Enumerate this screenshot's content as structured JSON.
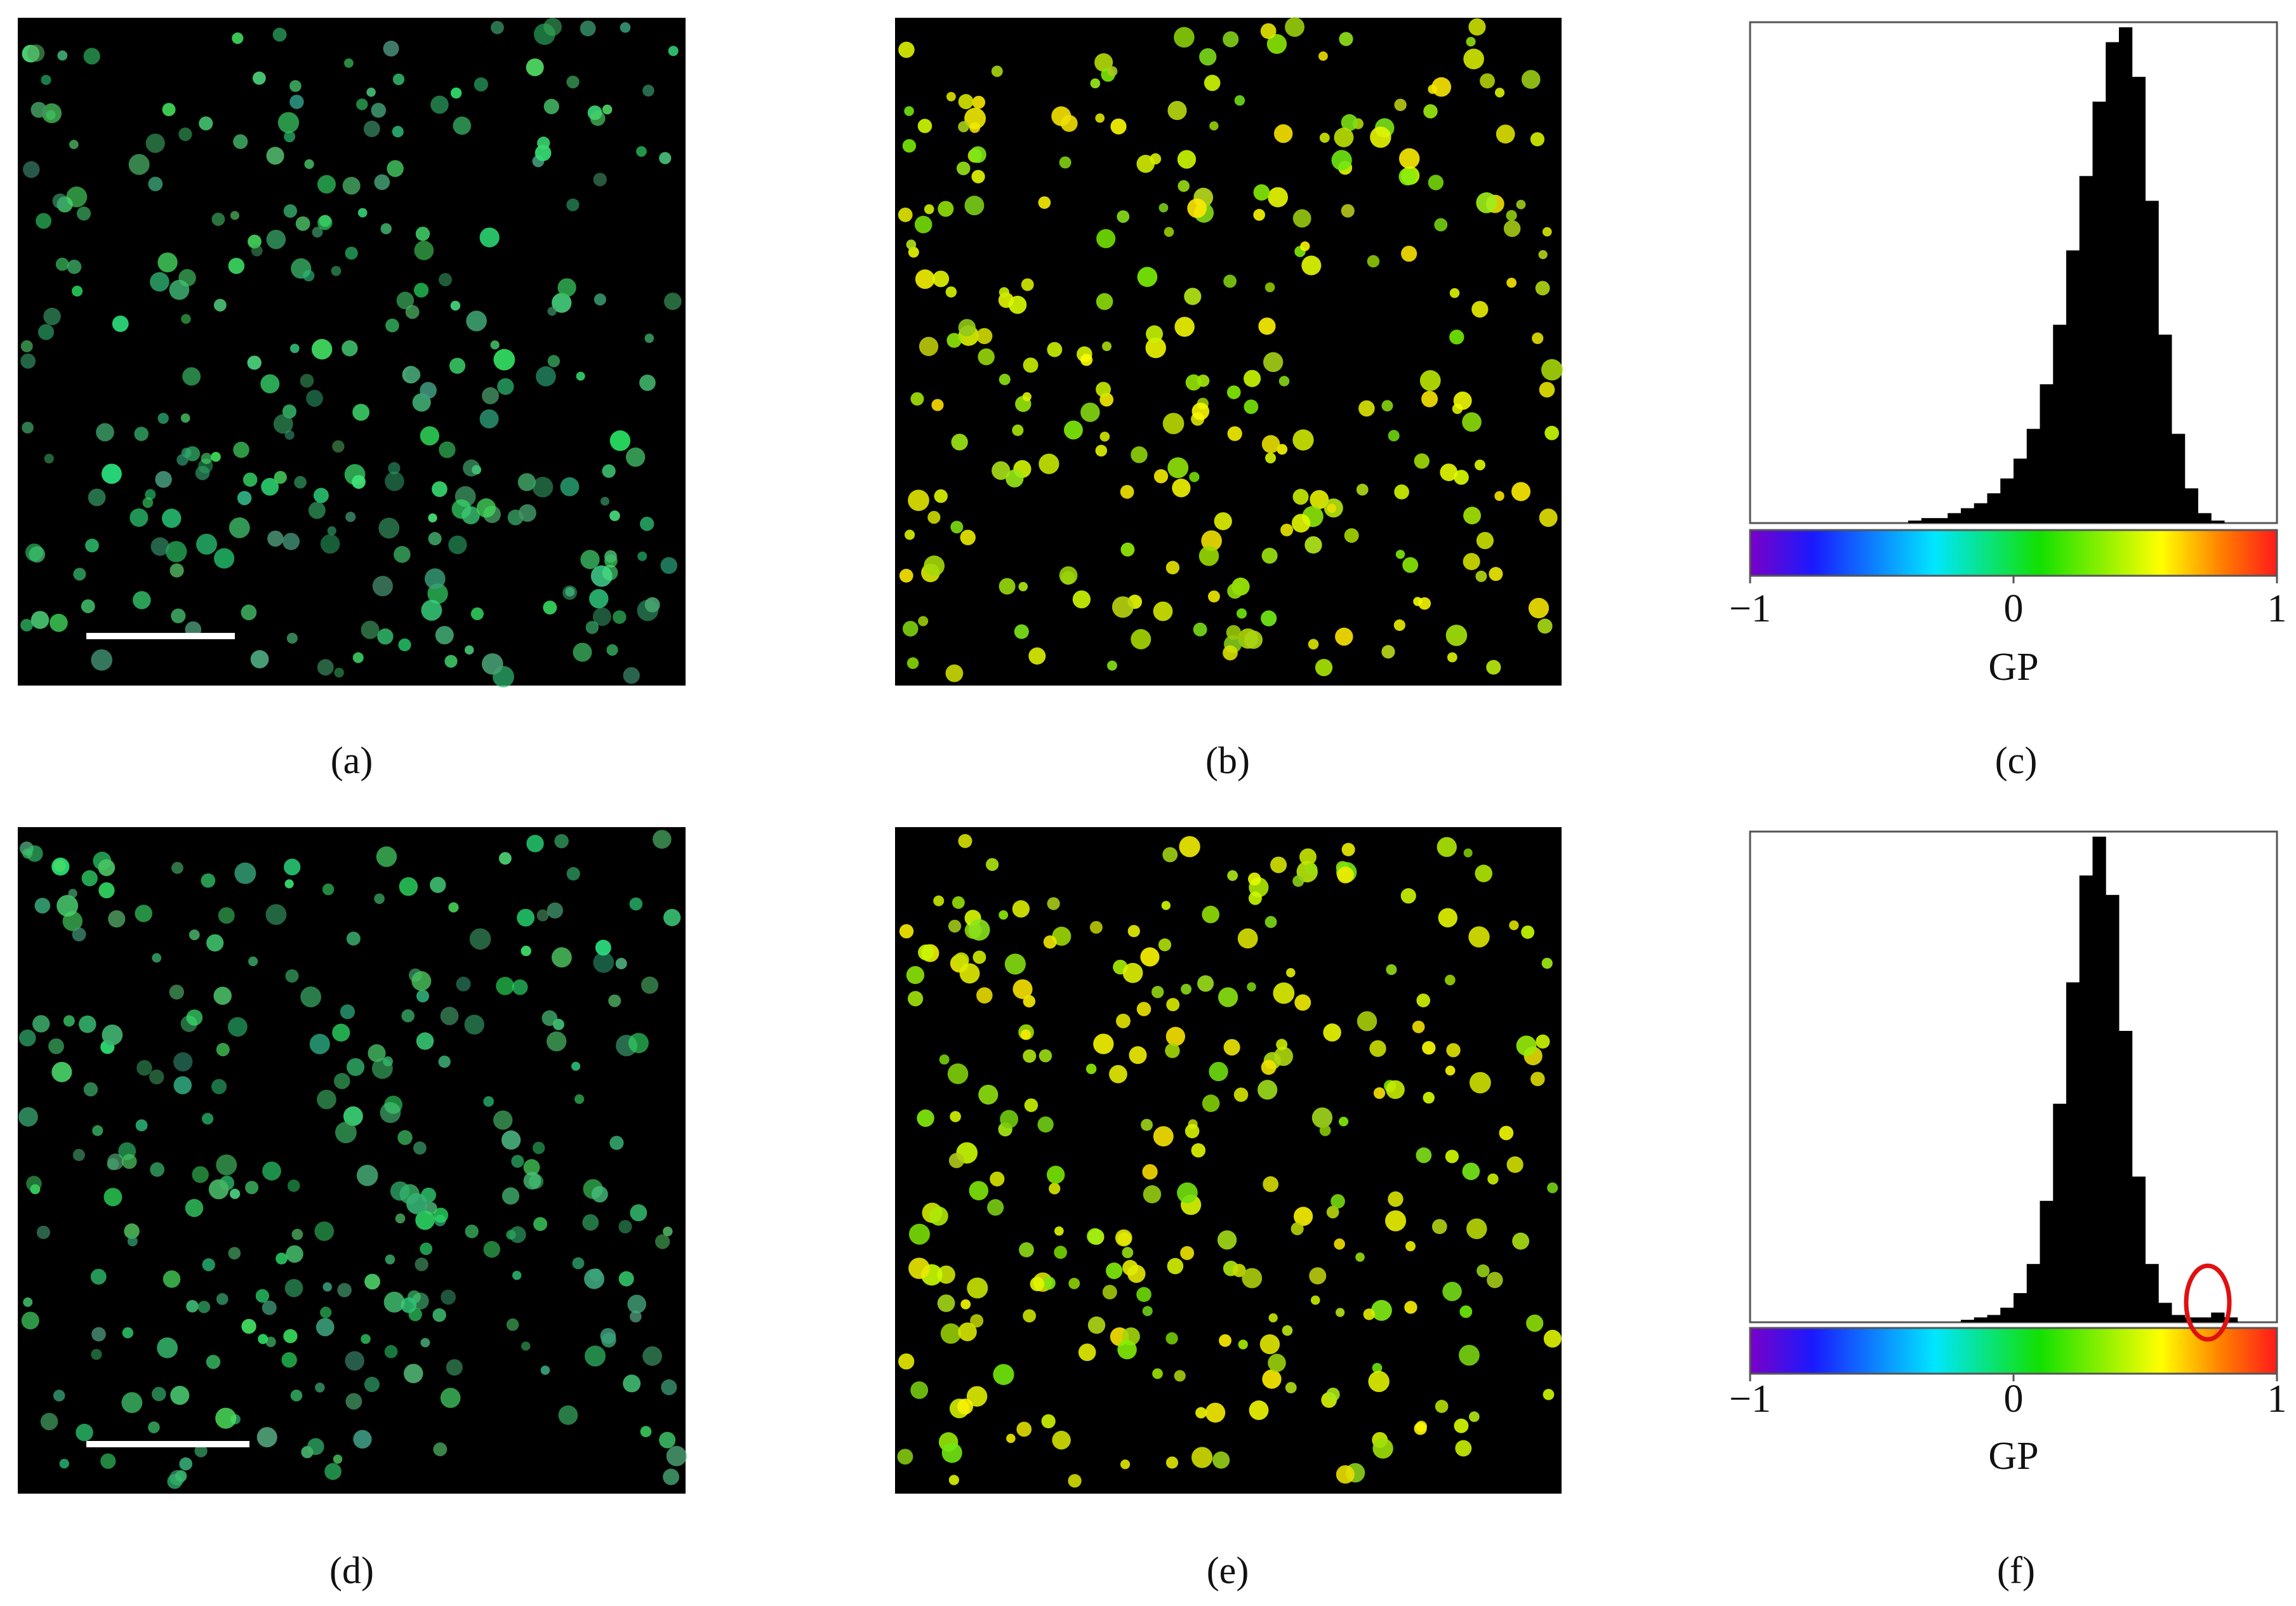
{
  "panels": [
    {
      "label": "(a)"
    },
    {
      "label": "(b)"
    },
    {
      "label": "(c)"
    },
    {
      "label": "(d)"
    },
    {
      "label": "(e)"
    },
    {
      "label": "(f)"
    }
  ],
  "chart_data": [
    {
      "type": "histogram",
      "xlabel": "GP",
      "bins": [
        -1,
        -0.95,
        -0.9,
        -0.85,
        -0.8,
        -0.75,
        -0.7,
        -0.65,
        -0.6,
        -0.55,
        -0.5,
        -0.45,
        -0.4,
        -0.35,
        -0.3,
        -0.25,
        -0.2,
        -0.15,
        -0.1,
        -0.05,
        0,
        0.05,
        0.1,
        0.15,
        0.2,
        0.25,
        0.3,
        0.35,
        0.4,
        0.45,
        0.5,
        0.55,
        0.6,
        0.65,
        0.7,
        0.75,
        0.8,
        0.85,
        0.9,
        0.95,
        1
      ],
      "counts": [
        0,
        0,
        0,
        0,
        0,
        0,
        0,
        0,
        0,
        0,
        0,
        0,
        0.5,
        1,
        1,
        2,
        3,
        4,
        6,
        9,
        13,
        19,
        28,
        40,
        55,
        70,
        85,
        97,
        100,
        90,
        65,
        38,
        18,
        7,
        2,
        0.5,
        0,
        0,
        0,
        0
      ],
      "color": "#000000",
      "xlim": [
        -1,
        1
      ],
      "ylim": [
        0,
        100
      ],
      "xticks": [
        {
          "value": -1,
          "label": "−1"
        },
        0,
        1
      ]
    },
    {
      "type": "histogram",
      "xlabel": "GP",
      "bins": [
        -1,
        -0.95,
        -0.9,
        -0.85,
        -0.8,
        -0.75,
        -0.7,
        -0.65,
        -0.6,
        -0.55,
        -0.5,
        -0.45,
        -0.4,
        -0.35,
        -0.3,
        -0.25,
        -0.2,
        -0.15,
        -0.1,
        -0.05,
        0,
        0.05,
        0.1,
        0.15,
        0.2,
        0.25,
        0.3,
        0.35,
        0.4,
        0.45,
        0.5,
        0.55,
        0.6,
        0.65,
        0.7,
        0.75,
        0.8,
        0.85,
        0.9,
        0.95,
        1
      ],
      "counts": [
        0,
        0,
        0,
        0,
        0,
        0,
        0,
        0,
        0,
        0,
        0,
        0,
        0,
        0,
        0,
        0,
        0.5,
        1,
        1.5,
        3,
        6,
        12,
        25,
        45,
        70,
        92,
        100,
        88,
        60,
        30,
        12,
        4,
        1.5,
        1,
        1,
        2,
        1,
        0,
        0,
        0
      ],
      "color": "#000000",
      "xlim": [
        -1,
        1
      ],
      "ylim": [
        0,
        100
      ],
      "xticks": [
        {
          "value": -1,
          "label": "−1"
        },
        0,
        1
      ]
    }
  ]
}
